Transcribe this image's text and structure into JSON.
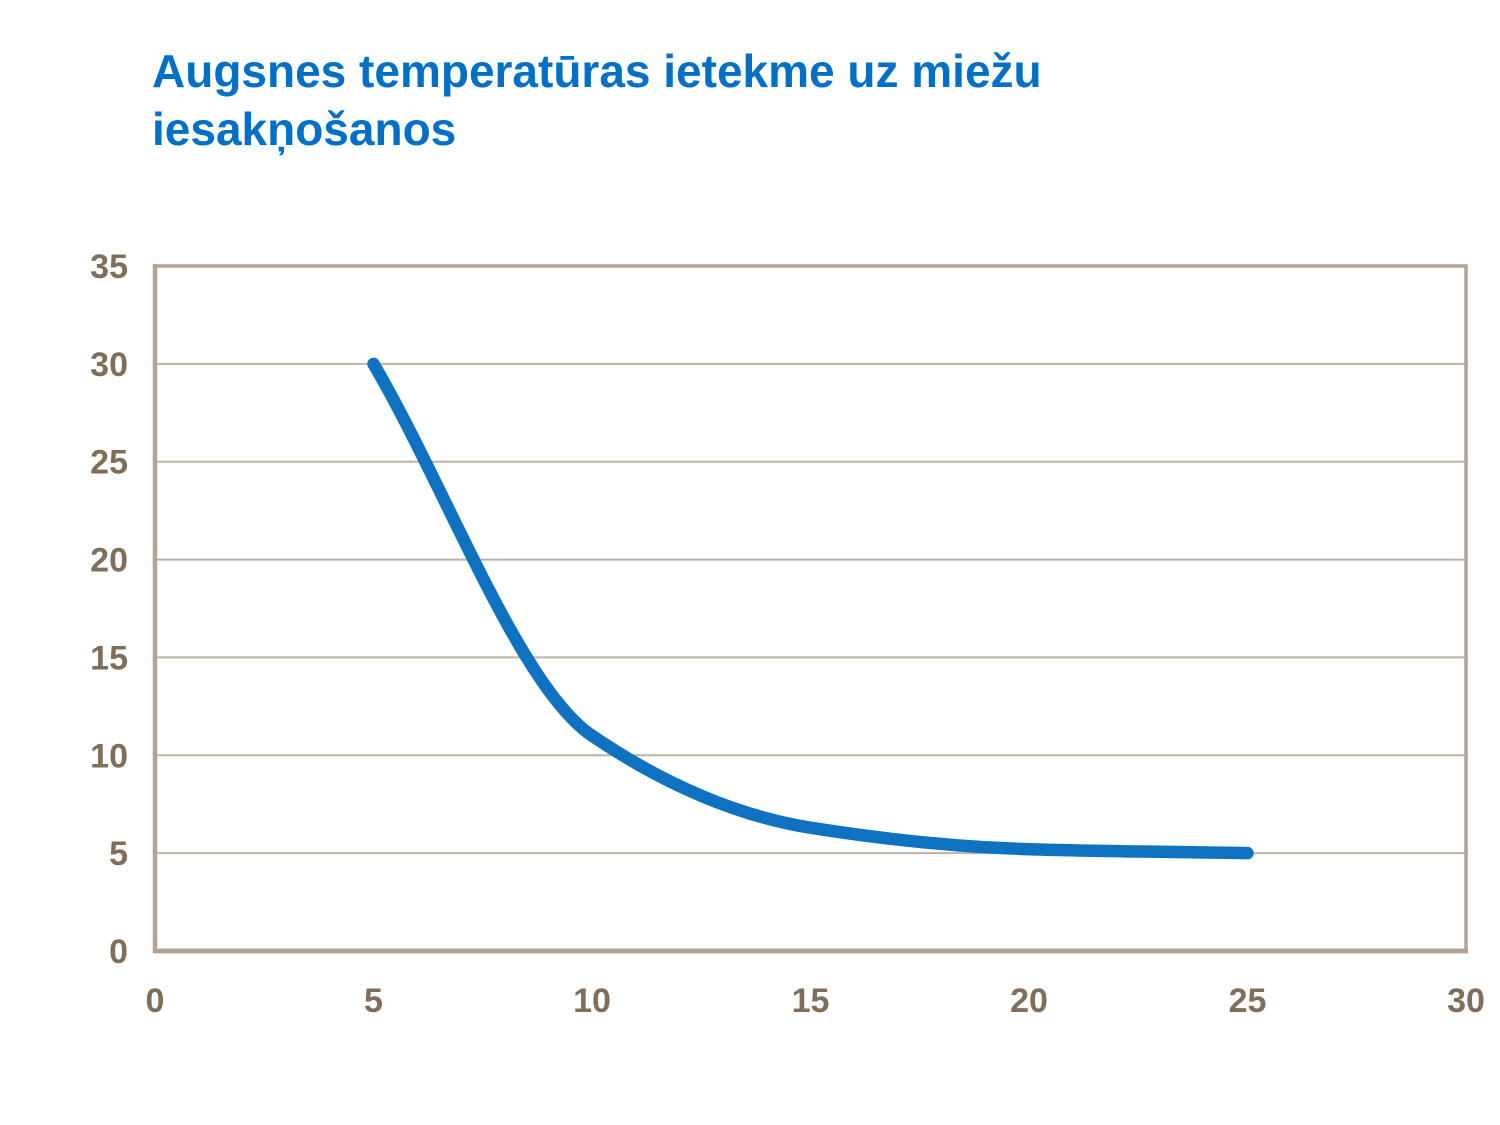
{
  "page": {
    "background": "#ffffff"
  },
  "title": {
    "text": "Augsnes temperatūras ietekme uz miežu iesakņošanos",
    "color": "#0070c6"
  },
  "chart_data": {
    "type": "line",
    "title": "Augsnes temperatūras ietekme uz miežu iesakņošanos",
    "x": [
      5,
      10,
      15,
      20,
      25
    ],
    "y": [
      30,
      11,
      6.3,
      5.2,
      5
    ],
    "xlabel": "",
    "ylabel": "",
    "xlim": [
      0,
      30
    ],
    "ylim": [
      0,
      35
    ],
    "x_ticks": [
      0,
      5,
      10,
      15,
      20,
      25,
      30
    ],
    "y_ticks": [
      0,
      5,
      10,
      15,
      20,
      25,
      30,
      35
    ],
    "grid": "horizontal",
    "legend": "none",
    "markers": "none",
    "smooth": true,
    "line_color": "#0f72c1",
    "line_width": 12.5
  },
  "style": {
    "title_color": "#0070c6",
    "frame_color": "#b0a496",
    "grid_color": "#bdb3a5",
    "tick_label_color": "#7f6f5a"
  }
}
